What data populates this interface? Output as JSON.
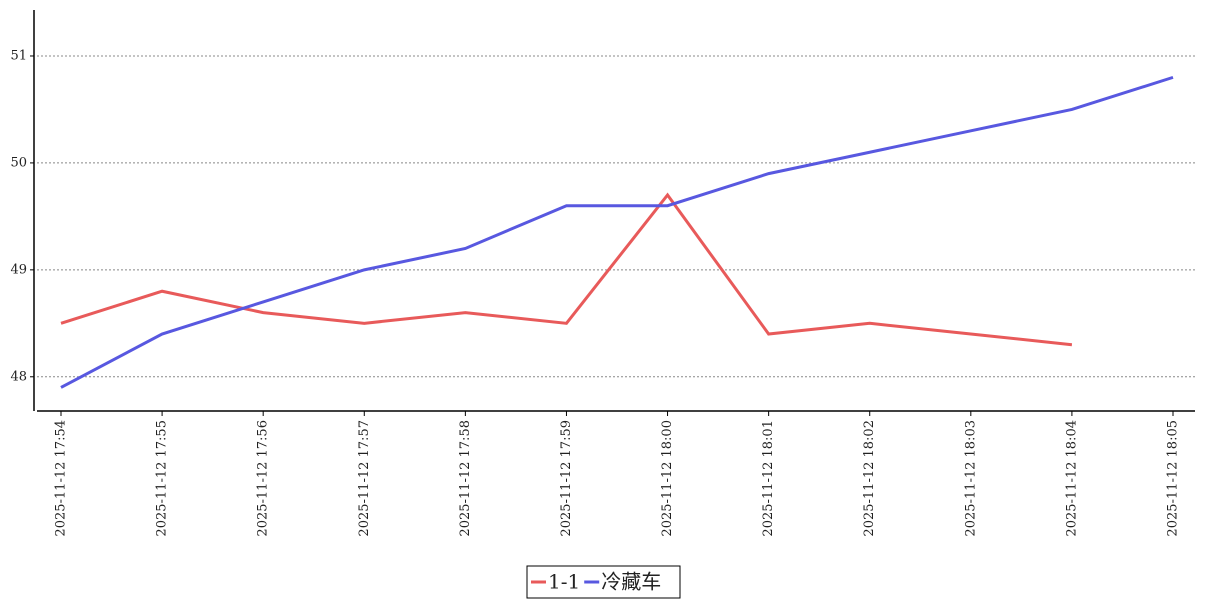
{
  "chart_data": {
    "type": "line",
    "categories": [
      "2025-11-12 17:54",
      "2025-11-12 17:55",
      "2025-11-12 17:56",
      "2025-11-12 17:57",
      "2025-11-12 17:58",
      "2025-11-12 17:59",
      "2025-11-12 18:00",
      "2025-11-12 18:01",
      "2025-11-12 18:02",
      "2025-11-12 18:03",
      "2025-11-12 18:04",
      "2025-11-12 18:05"
    ],
    "series": [
      {
        "name": "1-1",
        "color": "#e85a5a",
        "values": [
          48.5,
          48.8,
          48.6,
          48.5,
          48.6,
          48.5,
          49.7,
          48.4,
          48.5,
          48.4,
          48.3,
          null
        ]
      },
      {
        "name": "冷藏车",
        "color": "#5858e0",
        "values": [
          47.9,
          48.4,
          48.7,
          49.0,
          49.2,
          49.6,
          49.6,
          49.9,
          50.1,
          50.3,
          50.5,
          50.8
        ]
      }
    ],
    "ylim": [
      47.68,
      51.43
    ],
    "yticks": [
      48,
      49,
      50,
      51
    ],
    "grid": true,
    "legend": "bottom"
  }
}
